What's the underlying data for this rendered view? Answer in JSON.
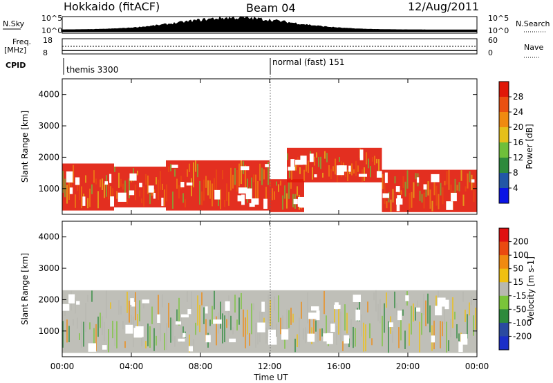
{
  "header": {
    "station": "Hokkaido (fitACF)",
    "beam": "Beam 04",
    "date": "12/Aug/2011"
  },
  "side_labels": {
    "nsky": "N.Sky",
    "nsky_top": "10^5",
    "nsky_bottom": "10^0",
    "freq": "Freq.",
    "freq_unit": "[MHz]",
    "freq_top": "18",
    "freq_bottom": "8",
    "cpid": "CPID",
    "nsearch": "N.Search",
    "nsearch_top": "10^5",
    "nsearch_bottom": "10^0",
    "nave": "Nave",
    "nave_top": "60",
    "nave_bottom": "0"
  },
  "cpid_segments": [
    {
      "label": "themis 3300",
      "start": "00:00"
    },
    {
      "label": "normal (fast) 151",
      "start": "12:00"
    }
  ],
  "chart_data": [
    {
      "type": "heatmap",
      "panel": "power",
      "ylabel": "Slant Range [km]",
      "yticks": [
        1000,
        2000,
        3000,
        4000
      ],
      "ylim": [
        180,
        4500
      ],
      "xlim": [
        "00:00",
        "24:00"
      ],
      "colorbar": {
        "label": "Power [dB]",
        "ticks": [
          "4",
          "8",
          "12",
          "16",
          "20",
          "24",
          "28"
        ],
        "colors": [
          "#0a14e6",
          "#2257a6",
          "#2d8a3c",
          "#6fbf3a",
          "#e6c01a",
          "#f08a10",
          "#ea5010",
          "#e01808"
        ]
      },
      "regions": [
        {
          "t": [
            "00:00",
            "03:00"
          ],
          "range": [
            300,
            1800
          ],
          "level": "high"
        },
        {
          "t": [
            "03:00",
            "06:00"
          ],
          "range": [
            400,
            1700
          ],
          "level": "high"
        },
        {
          "t": [
            "06:00",
            "12:00"
          ],
          "range": [
            300,
            1900
          ],
          "level": "high"
        },
        {
          "t": [
            "12:00",
            "14:00"
          ],
          "range": [
            250,
            1300
          ],
          "level": "high"
        },
        {
          "t": [
            "13:00",
            "18:30"
          ],
          "range": [
            1200,
            2300
          ],
          "level": "high"
        },
        {
          "t": [
            "18:30",
            "24:00"
          ],
          "range": [
            250,
            1600
          ],
          "level": "high"
        }
      ]
    },
    {
      "type": "heatmap",
      "panel": "velocity",
      "ylabel": "Slant Range [km]",
      "yticks": [
        1000,
        2000,
        3000,
        4000
      ],
      "ylim": [
        180,
        4500
      ],
      "xlim": [
        "00:00",
        "24:00"
      ],
      "colorbar": {
        "label": "Velocity [m s-1]",
        "ticks": [
          "200",
          "100",
          "50",
          "15",
          "-15",
          "-50",
          "-100",
          "-200"
        ],
        "colors": [
          "#1a2ec8",
          "#2a4aa0",
          "#2d8a3c",
          "#7ac43a",
          "#b8b8b0",
          "#f0c010",
          "#f08a10",
          "#ea4a10",
          "#e01010"
        ]
      },
      "regions": [
        {
          "t": [
            "00:00",
            "24:00"
          ],
          "range": [
            300,
            2300
          ],
          "level": "ground"
        }
      ]
    }
  ],
  "xaxis": {
    "ticks": [
      "00:00",
      "04:00",
      "08:00",
      "12:00",
      "16:00",
      "20:00",
      "00:00"
    ],
    "label": "Time UT"
  }
}
